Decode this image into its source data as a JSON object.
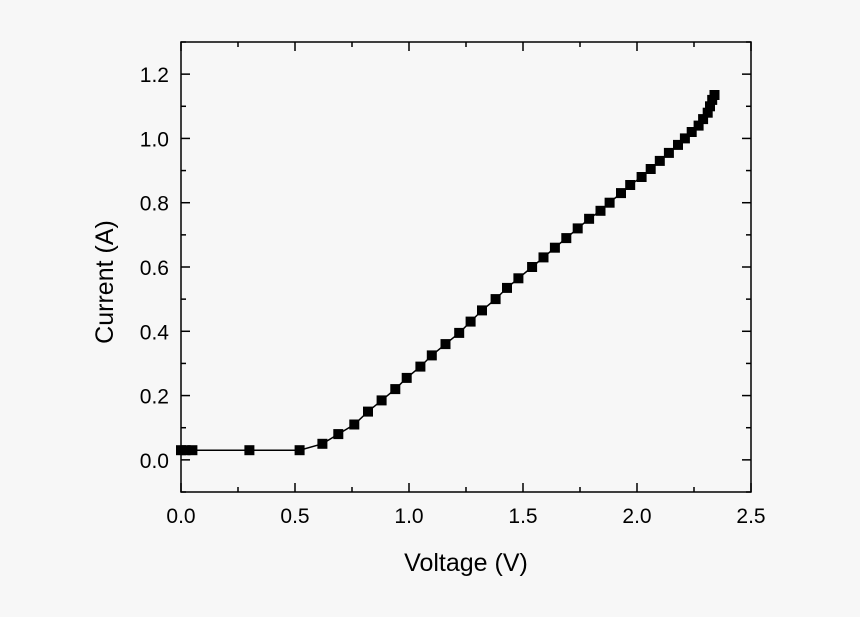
{
  "chart_data": {
    "type": "line",
    "title": "",
    "xlabel": "Voltage (V)",
    "ylabel": "Current (A)",
    "xlim": [
      0.0,
      2.5
    ],
    "ylim": [
      -0.1,
      1.3
    ],
    "xticks": [
      "0.0",
      "0.5",
      "1.0",
      "1.5",
      "2.0",
      "2.5"
    ],
    "yticks": [
      "0.0",
      "0.2",
      "0.4",
      "0.6",
      "0.8",
      "1.0",
      "1.2"
    ],
    "grid": false,
    "legend": "none",
    "marker": "square",
    "color": "#000000",
    "series": [
      {
        "x": [
          0.0,
          0.02,
          0.05,
          0.3,
          0.52,
          0.62,
          0.69,
          0.76,
          0.82,
          0.88,
          0.94,
          0.99,
          1.05,
          1.1,
          1.16,
          1.22,
          1.27,
          1.32,
          1.38,
          1.43,
          1.48,
          1.54,
          1.59,
          1.64,
          1.69,
          1.74,
          1.79,
          1.84,
          1.88,
          1.93,
          1.97,
          2.02,
          2.06,
          2.1,
          2.14,
          2.18,
          2.21,
          2.24,
          2.27,
          2.29,
          2.31,
          2.32,
          2.33,
          2.34
        ],
        "y": [
          0.03,
          0.03,
          0.03,
          0.03,
          0.03,
          0.05,
          0.08,
          0.11,
          0.15,
          0.185,
          0.22,
          0.255,
          0.29,
          0.325,
          0.36,
          0.395,
          0.43,
          0.465,
          0.5,
          0.535,
          0.565,
          0.6,
          0.63,
          0.66,
          0.69,
          0.72,
          0.75,
          0.775,
          0.8,
          0.83,
          0.855,
          0.88,
          0.905,
          0.93,
          0.955,
          0.98,
          1.0,
          1.02,
          1.04,
          1.06,
          1.08,
          1.1,
          1.12,
          1.135
        ]
      }
    ]
  }
}
